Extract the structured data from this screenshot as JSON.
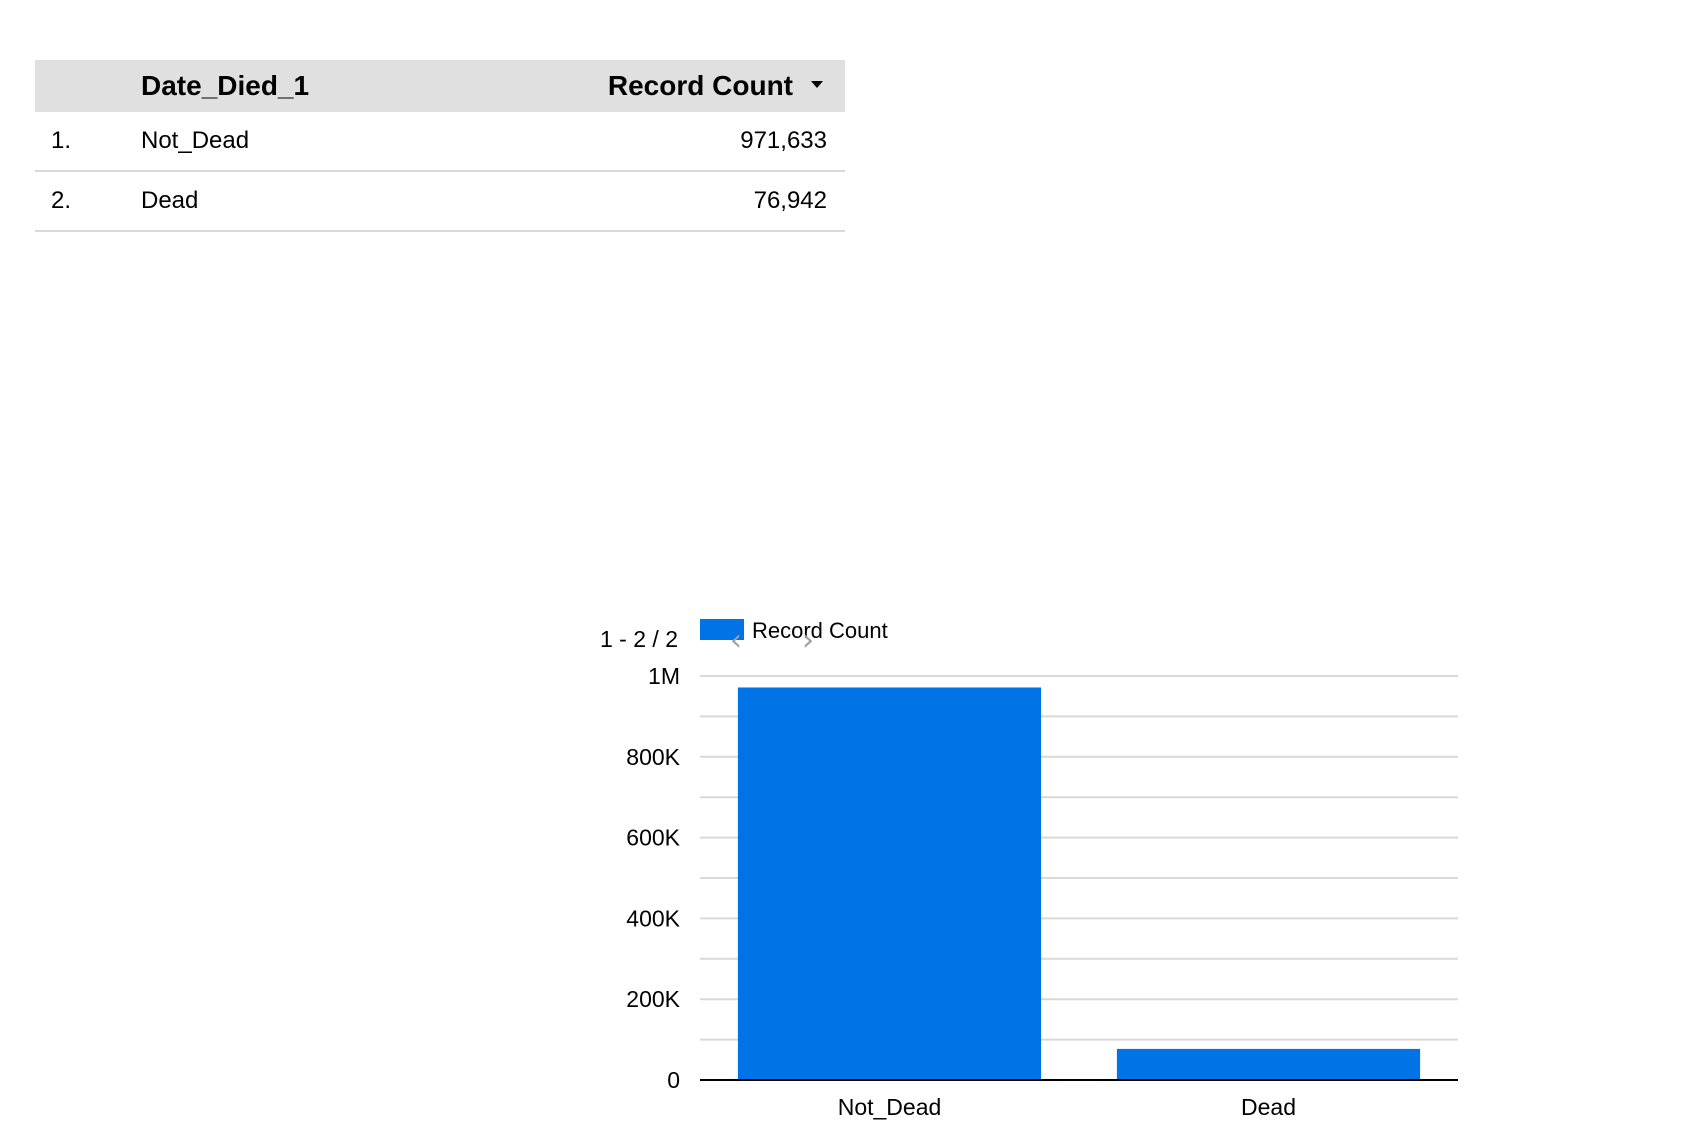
{
  "table": {
    "headers": {
      "dimension": "Date_Died_1",
      "metric": "Record Count"
    },
    "rows": [
      {
        "index": "1.",
        "label": "Not_Dead",
        "value": "971,633"
      },
      {
        "index": "2.",
        "label": "Dead",
        "value": "76,942"
      }
    ],
    "sort_icon": "sort-desc-icon"
  },
  "pagination": {
    "text": "1 - 2 / 2",
    "prev_icon": "chevron-left-icon",
    "next_icon": "chevron-right-icon",
    "prev_glyph": "‹",
    "next_glyph": "›"
  },
  "chart_data": {
    "type": "bar",
    "categories": [
      "Not_Dead",
      "Dead"
    ],
    "series": [
      {
        "name": "Record Count",
        "values": [
          971633,
          76942
        ],
        "color": "#0073e6"
      }
    ],
    "ylim": [
      0,
      1000000
    ],
    "yticks": [
      0,
      200000,
      400000,
      600000,
      800000,
      1000000
    ],
    "ytick_labels": [
      "0",
      "200K",
      "400K",
      "600K",
      "800K",
      "1M"
    ],
    "grid": true,
    "legend": "top-left"
  }
}
